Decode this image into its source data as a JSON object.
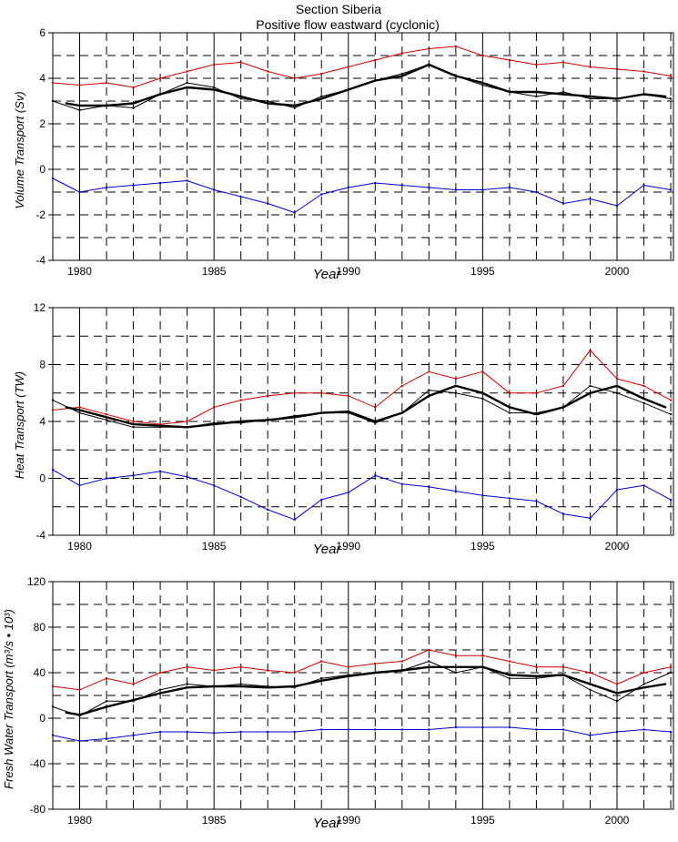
{
  "title": {
    "line1": "Section Siberia",
    "line2": "Positive flow eastward (cyclonic)"
  },
  "colors": {
    "positive": "#cc0000",
    "negative": "#0000cc",
    "net": "#000000",
    "smoothed": "#000000"
  },
  "chart_data": [
    {
      "type": "line",
      "xlabel": "Year",
      "ylabel": "Volume Transport (Sv)",
      "xlim": [
        1979.0,
        2002.1
      ],
      "ylim": [
        -4,
        6
      ],
      "x_ticks": [
        "1980",
        "1985",
        "1990",
        "1995",
        "2000"
      ],
      "y_ticks": [
        "-4",
        "-2",
        "0",
        "2",
        "4",
        "6"
      ],
      "grid": true,
      "series": [
        {
          "role": "positive",
          "x": [
            1979,
            1980,
            1981,
            1982,
            1983,
            1984,
            1985,
            1986,
            1987,
            1988,
            1989,
            1990,
            1991,
            1992,
            1993,
            1994,
            1995,
            1996,
            1997,
            1998,
            1999,
            2000,
            2001,
            2002
          ],
          "y": [
            3.8,
            3.7,
            3.8,
            3.6,
            4.0,
            4.3,
            4.6,
            4.7,
            4.3,
            4.0,
            4.2,
            4.5,
            4.8,
            5.1,
            5.3,
            5.4,
            5.0,
            4.8,
            4.6,
            4.7,
            4.5,
            4.4,
            4.3,
            4.1
          ]
        },
        {
          "role": "net",
          "x": [
            1979,
            1980,
            1981,
            1982,
            1983,
            1984,
            1985,
            1986,
            1987,
            1988,
            1989,
            1990,
            1991,
            1992,
            1993,
            1994,
            1995,
            1996,
            1997,
            1998,
            1999,
            2000,
            2001,
            2002
          ],
          "y": [
            3.0,
            2.6,
            2.8,
            2.7,
            3.3,
            3.8,
            3.6,
            3.1,
            3.0,
            2.7,
            3.2,
            3.5,
            3.9,
            4.2,
            4.6,
            4.1,
            3.7,
            3.4,
            3.2,
            3.4,
            3.1,
            3.1,
            3.3,
            3.1
          ]
        },
        {
          "role": "smoothed",
          "x": [
            1979.5,
            1980,
            1981,
            1982,
            1983,
            1984,
            1985,
            1986,
            1987,
            1988,
            1989,
            1990,
            1991,
            1992,
            1993,
            1994,
            1995,
            1996,
            1997,
            1998,
            1999,
            2000,
            2001,
            2001.8
          ],
          "y": [
            2.9,
            2.8,
            2.8,
            2.9,
            3.3,
            3.6,
            3.5,
            3.2,
            2.9,
            2.8,
            3.1,
            3.5,
            3.9,
            4.1,
            4.6,
            4.1,
            3.8,
            3.4,
            3.4,
            3.3,
            3.2,
            3.1,
            3.3,
            3.2
          ]
        },
        {
          "role": "negative",
          "x": [
            1979,
            1980,
            1981,
            1982,
            1983,
            1984,
            1985,
            1986,
            1987,
            1988,
            1989,
            1990,
            1991,
            1992,
            1993,
            1994,
            1995,
            1996,
            1997,
            1998,
            1999,
            2000,
            2001,
            2002
          ],
          "y": [
            -0.4,
            -1.0,
            -0.8,
            -0.7,
            -0.6,
            -0.5,
            -0.9,
            -1.2,
            -1.5,
            -1.9,
            -1.1,
            -0.8,
            -0.6,
            -0.7,
            -0.8,
            -0.9,
            -0.9,
            -0.8,
            -1.0,
            -1.5,
            -1.3,
            -1.6,
            -0.7,
            -0.9
          ]
        }
      ]
    },
    {
      "type": "line",
      "xlabel": "Year",
      "ylabel": "Heat Transport (TW)",
      "xlim": [
        1979.0,
        2002.1
      ],
      "ylim": [
        -4,
        12
      ],
      "x_ticks": [
        "1980",
        "1985",
        "1990",
        "1995",
        "2000"
      ],
      "y_ticks": [
        "-4",
        "0",
        "4",
        "8",
        "12"
      ],
      "grid": true,
      "series": [
        {
          "role": "positive",
          "x": [
            1979,
            1980,
            1981,
            1982,
            1983,
            1984,
            1985,
            1986,
            1987,
            1988,
            1989,
            1990,
            1991,
            1992,
            1993,
            1994,
            1995,
            1996,
            1997,
            1998,
            1999,
            2000,
            2001,
            2002
          ],
          "y": [
            4.8,
            5.0,
            4.5,
            4.0,
            3.8,
            4.0,
            5.0,
            5.5,
            5.8,
            6.0,
            6.0,
            5.8,
            5.0,
            6.5,
            7.5,
            7.0,
            7.5,
            6.0,
            6.0,
            6.5,
            9.0,
            7.0,
            6.5,
            5.5
          ]
        },
        {
          "role": "net",
          "x": [
            1979,
            1980,
            1981,
            1982,
            1983,
            1984,
            1985,
            1986,
            1987,
            1988,
            1989,
            1990,
            1991,
            1992,
            1993,
            1994,
            1995,
            1996,
            1997,
            1998,
            1999,
            2000,
            2001,
            2002
          ],
          "y": [
            5.5,
            4.6,
            4.1,
            3.6,
            3.6,
            3.6,
            3.9,
            3.9,
            4.1,
            4.4,
            4.6,
            4.6,
            3.9,
            4.6,
            6.2,
            6.0,
            5.6,
            4.6,
            4.6,
            5.0,
            6.5,
            6.0,
            5.3,
            4.5
          ]
        },
        {
          "role": "smoothed",
          "x": [
            1979.5,
            1980,
            1981,
            1982,
            1983,
            1984,
            1985,
            1986,
            1987,
            1988,
            1989,
            1990,
            1991,
            1992,
            1993,
            1994,
            1995,
            1996,
            1997,
            1998,
            1999,
            2000,
            2001,
            2001.8
          ],
          "y": [
            5.0,
            4.8,
            4.3,
            3.8,
            3.7,
            3.6,
            3.8,
            4.0,
            4.1,
            4.3,
            4.6,
            4.7,
            4.0,
            4.6,
            5.8,
            6.5,
            6.0,
            5.0,
            4.5,
            5.0,
            6.0,
            6.5,
            5.6,
            5.0
          ]
        },
        {
          "role": "negative",
          "x": [
            1979,
            1980,
            1981,
            1982,
            1983,
            1984,
            1985,
            1986,
            1987,
            1988,
            1989,
            1990,
            1991,
            1992,
            1993,
            1994,
            1995,
            1996,
            1997,
            1998,
            1999,
            2000,
            2001,
            2002
          ],
          "y": [
            0.6,
            -0.5,
            0.0,
            0.2,
            0.5,
            0.1,
            -0.5,
            -1.3,
            -2.2,
            -2.9,
            -1.5,
            -1.0,
            0.2,
            -0.4,
            -0.6,
            -0.9,
            -1.2,
            -1.4,
            -1.6,
            -2.5,
            -2.8,
            -0.8,
            -0.5,
            -1.5
          ]
        }
      ]
    },
    {
      "type": "line",
      "xlabel": "Year",
      "ylabel": "Fresh Water Transport (m³/s • 10³)",
      "xlim": [
        1979.0,
        2002.1
      ],
      "ylim": [
        -80,
        120
      ],
      "x_ticks": [
        "1980",
        "1985",
        "1990",
        "1995",
        "2000"
      ],
      "y_ticks": [
        "-80",
        "-40",
        "0",
        "40",
        "80",
        "120"
      ],
      "grid": true,
      "series": [
        {
          "role": "positive",
          "x": [
            1979,
            1980,
            1981,
            1982,
            1983,
            1984,
            1985,
            1986,
            1987,
            1988,
            1989,
            1990,
            1991,
            1992,
            1993,
            1994,
            1995,
            1996,
            1997,
            1998,
            1999,
            2000,
            2001,
            2002
          ],
          "y": [
            28,
            25,
            35,
            30,
            40,
            45,
            42,
            45,
            42,
            40,
            50,
            45,
            48,
            50,
            60,
            55,
            55,
            50,
            45,
            45,
            40,
            30,
            40,
            45
          ]
        },
        {
          "role": "net",
          "x": [
            1979,
            1980,
            1981,
            1982,
            1983,
            1984,
            1985,
            1986,
            1987,
            1988,
            1989,
            1990,
            1991,
            1992,
            1993,
            1994,
            1995,
            1996,
            1997,
            1998,
            1999,
            2000,
            2001,
            2002
          ],
          "y": [
            10,
            2,
            15,
            15,
            25,
            30,
            28,
            30,
            28,
            27,
            35,
            38,
            40,
            42,
            50,
            40,
            45,
            35,
            35,
            38,
            25,
            15,
            30,
            40
          ]
        },
        {
          "role": "smoothed",
          "x": [
            1979.5,
            1980,
            1981,
            1982,
            1983,
            1984,
            1985,
            1986,
            1987,
            1988,
            1989,
            1990,
            1991,
            1992,
            1993,
            1994,
            1995,
            1996,
            1997,
            1998,
            1999,
            2000,
            2001,
            2001.8
          ],
          "y": [
            5,
            3,
            10,
            16,
            22,
            27,
            28,
            28,
            27,
            28,
            33,
            37,
            40,
            42,
            45,
            45,
            45,
            38,
            37,
            38,
            30,
            22,
            27,
            30
          ]
        },
        {
          "role": "negative",
          "x": [
            1979,
            1980,
            1981,
            1982,
            1983,
            1984,
            1985,
            1986,
            1987,
            1988,
            1989,
            1990,
            1991,
            1992,
            1993,
            1994,
            1995,
            1996,
            1997,
            1998,
            1999,
            2000,
            2001,
            2002
          ],
          "y": [
            -15,
            -20,
            -18,
            -15,
            -12,
            -12,
            -13,
            -12,
            -12,
            -12,
            -10,
            -10,
            -10,
            -10,
            -10,
            -8,
            -8,
            -8,
            -10,
            -10,
            -15,
            -12,
            -10,
            -12
          ]
        }
      ]
    }
  ]
}
